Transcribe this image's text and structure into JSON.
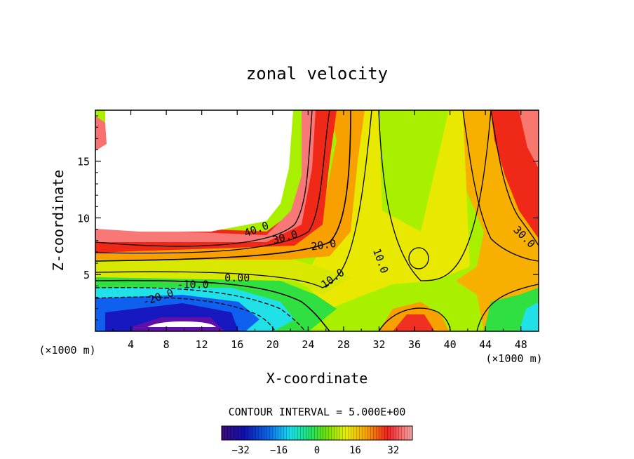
{
  "chart_data": {
    "type": "heatmap",
    "title": "zonal velocity",
    "xlabel": "X-coordinate",
    "ylabel": "Z-coordinate",
    "x_unit": "(×1000 m)",
    "z_unit": "(×1000 m)",
    "xlim": [
      0,
      50
    ],
    "ylim": [
      0,
      19.5
    ],
    "x_ticks": [
      "4",
      "8",
      "12",
      "16",
      "20",
      "24",
      "28",
      "32",
      "36",
      "40",
      "44",
      "48"
    ],
    "y_ticks": [
      "5",
      "10",
      "15"
    ],
    "contour_interval_text": "CONTOUR INTERVAL = 5.000E+00",
    "colorbar": {
      "range": [
        -40,
        40
      ],
      "ticks": [
        "-32",
        "-16",
        "0",
        "16",
        "32"
      ]
    },
    "contour_labels": [
      {
        "text": "40.0",
        "x": 18.3,
        "z": 8.7,
        "rotate": -20
      },
      {
        "text": "30.0",
        "x": 21.5,
        "z": 8.0,
        "rotate": -15
      },
      {
        "text": "20.0",
        "x": 25.8,
        "z": 7.3,
        "rotate": -8
      },
      {
        "text": "10.0",
        "x": 27.0,
        "z": 4.4,
        "rotate": -35
      },
      {
        "text": "10.0",
        "x": 31.8,
        "z": 6.1,
        "rotate": 70
      },
      {
        "text": "30.0",
        "x": 48.1,
        "z": 8.1,
        "rotate": 45
      },
      {
        "text": "0.00",
        "x": 16.0,
        "z": 4.4,
        "rotate": 0
      },
      {
        "text": "-10.0",
        "x": 11.0,
        "z": 3.8,
        "rotate": 0
      },
      {
        "text": "-20.0",
        "x": 7.2,
        "z": 2.7,
        "rotate": -18
      }
    ]
  }
}
